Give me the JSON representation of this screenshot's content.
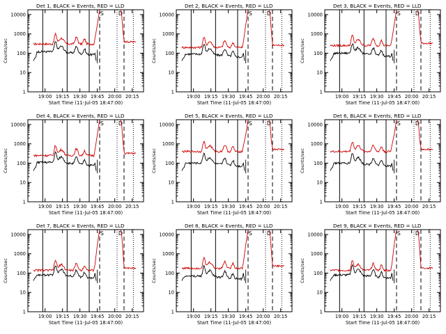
{
  "chart_data": [
    {
      "type": "line",
      "title": "Det  1, BLACK = Events, RED = LLD",
      "xlabel": "Start Time (11-Jul-05 18:47:00)",
      "ylabel": "Counts/sec",
      "x_ticks": [
        "19:00",
        "19:15",
        "19:30",
        "19:45",
        "20:00",
        "20:15"
      ],
      "y_ticks": [
        "1",
        "10",
        "100",
        "1000",
        "10000"
      ],
      "annotations": [
        "S",
        "D"
      ],
      "red_base": 300,
      "black_base": 120
    },
    {
      "type": "line",
      "title": "Det  2, BLACK = Events, RED = LLD",
      "xlabel": "Start Time (11-Jul-05 18:47:00)",
      "ylabel": "Counts/sec",
      "x_ticks": [
        "19:00",
        "19:15",
        "19:30",
        "19:45",
        "20:00",
        "20:15"
      ],
      "y_ticks": [
        "1",
        "10",
        "100",
        "1000",
        "10000"
      ],
      "annotations": [
        "S",
        "D"
      ],
      "red_base": 200,
      "black_base": 90
    },
    {
      "type": "line",
      "title": "Det  3, BLACK = Events, RED = LLD",
      "xlabel": "Start Time (11-Jul-05 18:47:00)",
      "ylabel": "Counts/sec",
      "x_ticks": [
        "19:00",
        "19:15",
        "19:30",
        "19:45",
        "20:00",
        "20:15"
      ],
      "y_ticks": [
        "1",
        "10",
        "100",
        "1000",
        "10000"
      ],
      "annotations": [
        "S",
        "D"
      ],
      "red_base": 250,
      "black_base": 100
    },
    {
      "type": "line",
      "title": "Det  4, BLACK = Events, RED = LLD",
      "xlabel": "Start Time (11-Jul-05 18:47:00)",
      "ylabel": "Counts/sec",
      "x_ticks": [
        "19:00",
        "19:15",
        "19:30",
        "19:45",
        "20:00",
        "20:15"
      ],
      "y_ticks": [
        "1",
        "10",
        "100",
        "1000",
        "10000"
      ],
      "annotations": [
        "S",
        "D"
      ],
      "red_base": 250,
      "black_base": 110
    },
    {
      "type": "line",
      "title": "Det  5, BLACK = Events, RED = LLD",
      "xlabel": "Start Time (11-Jul-05 18:47:00)",
      "ylabel": "Counts/sec",
      "x_ticks": [
        "19:00",
        "19:15",
        "19:30",
        "19:45",
        "20:00",
        "20:15"
      ],
      "y_ticks": [
        "1",
        "10",
        "100",
        "1000",
        "10000"
      ],
      "annotations": [
        "S",
        "D"
      ],
      "red_base": 400,
      "black_base": 100
    },
    {
      "type": "line",
      "title": "Det  6, BLACK = Events, RED = LLD",
      "xlabel": "Start Time (11-Jul-05 18:47:00)",
      "ylabel": "Counts/sec",
      "x_ticks": [
        "19:00",
        "19:15",
        "19:30",
        "19:45",
        "20:00",
        "20:15"
      ],
      "y_ticks": [
        "1",
        "10",
        "100",
        "1000",
        "10000"
      ],
      "annotations": [
        "S",
        "D"
      ],
      "red_base": 400,
      "black_base": 100
    },
    {
      "type": "line",
      "title": "Det  7, BLACK = Events, RED = LLD",
      "xlabel": "Start Time (11-Jul-05 18:47:00)",
      "ylabel": "Counts/sec",
      "x_ticks": [
        "19:00",
        "19:15",
        "19:30",
        "19:45",
        "20:00",
        "20:15"
      ],
      "y_ticks": [
        "1",
        "10",
        "100",
        "1000",
        "10000"
      ],
      "annotations": [
        "S",
        "D"
      ],
      "red_base": 140,
      "black_base": 80
    },
    {
      "type": "line",
      "title": "Det  8, BLACK = Events, RED = LLD",
      "xlabel": "Start Time (11-Jul-05 18:47:00)",
      "ylabel": "Counts/sec",
      "x_ticks": [
        "19:00",
        "19:15",
        "19:30",
        "19:45",
        "20:00",
        "20:15"
      ],
      "y_ticks": [
        "1",
        "10",
        "100",
        "1000",
        "10000"
      ],
      "annotations": [
        "S",
        "D"
      ],
      "red_base": 180,
      "black_base": 70
    },
    {
      "type": "line",
      "title": "Det  9, BLACK = Events, RED = LLD",
      "xlabel": "Start Time (11-Jul-05 18:47:00)",
      "ylabel": "Counts/sec",
      "x_ticks": [
        "19:00",
        "19:15",
        "19:30",
        "19:45",
        "20:00",
        "20:15"
      ],
      "y_ticks": [
        "1",
        "10",
        "100",
        "1000",
        "10000"
      ],
      "annotations": [
        "S",
        "D"
      ],
      "red_base": 140,
      "black_base": 80
    }
  ],
  "colors": {
    "events": "#000000",
    "lld": "#cc0000",
    "background": "#ffffff"
  }
}
